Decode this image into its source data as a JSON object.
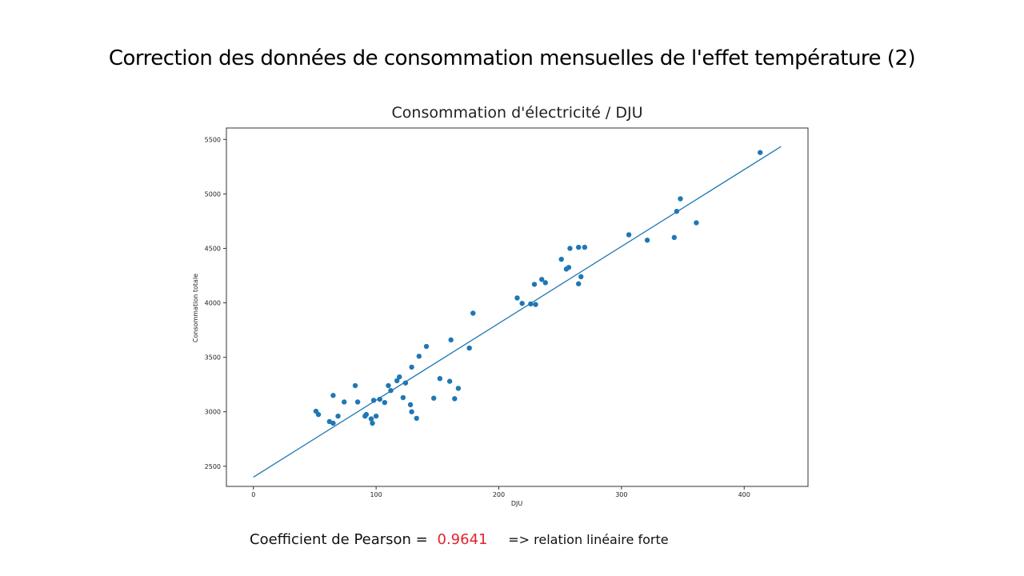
{
  "slide": {
    "title": "Correction des données de consommation mensuelles de l'effet température (2)"
  },
  "footer": {
    "pearson_label": "Coefficient de Pearson =",
    "pearson_value": "0.9641",
    "conclusion": "=> relation linéaire forte"
  },
  "chart_data": {
    "type": "scatter",
    "title": "Consommation d'électricité / DJU",
    "xlabel": "DJU",
    "ylabel": "Consommation totale",
    "xlim": [
      -22,
      452
    ],
    "ylim": [
      2315,
      5605
    ],
    "xticks": [
      0,
      100,
      200,
      300,
      400
    ],
    "yticks": [
      2500,
      3000,
      3500,
      4000,
      4500,
      5000,
      5500
    ],
    "grid": false,
    "point_color": "#1f77b4",
    "line_color": "#1f77b4",
    "fit_line": {
      "x": [
        0,
        430
      ],
      "y": [
        2400,
        5435
      ]
    },
    "points": [
      [
        51,
        3005
      ],
      [
        53,
        2975
      ],
      [
        62,
        2910
      ],
      [
        65,
        3150
      ],
      [
        65,
        2895
      ],
      [
        69,
        2960
      ],
      [
        74,
        3090
      ],
      [
        83,
        3240
      ],
      [
        85,
        3090
      ],
      [
        91,
        2960
      ],
      [
        92,
        2975
      ],
      [
        96,
        2935
      ],
      [
        97,
        2895
      ],
      [
        98,
        3105
      ],
      [
        100,
        2960
      ],
      [
        103,
        3115
      ],
      [
        107,
        3085
      ],
      [
        110,
        3240
      ],
      [
        112,
        3195
      ],
      [
        117,
        3285
      ],
      [
        119,
        3320
      ],
      [
        122,
        3130
      ],
      [
        124,
        3265
      ],
      [
        128,
        3065
      ],
      [
        129,
        3000
      ],
      [
        129,
        3410
      ],
      [
        133,
        2940
      ],
      [
        135,
        3510
      ],
      [
        141,
        3600
      ],
      [
        147,
        3125
      ],
      [
        152,
        3305
      ],
      [
        160,
        3280
      ],
      [
        161,
        3660
      ],
      [
        164,
        3120
      ],
      [
        167,
        3215
      ],
      [
        176,
        3585
      ],
      [
        179,
        3905
      ],
      [
        215,
        4045
      ],
      [
        219,
        3995
      ],
      [
        226,
        3990
      ],
      [
        229,
        4170
      ],
      [
        230,
        3985
      ],
      [
        235,
        4215
      ],
      [
        238,
        4185
      ],
      [
        251,
        4400
      ],
      [
        255,
        4310
      ],
      [
        257,
        4325
      ],
      [
        258,
        4500
      ],
      [
        265,
        4510
      ],
      [
        265,
        4175
      ],
      [
        267,
        4240
      ],
      [
        270,
        4510
      ],
      [
        306,
        4625
      ],
      [
        321,
        4575
      ],
      [
        343,
        4600
      ],
      [
        345,
        4840
      ],
      [
        348,
        4955
      ],
      [
        361,
        4735
      ],
      [
        413,
        5380
      ]
    ]
  }
}
